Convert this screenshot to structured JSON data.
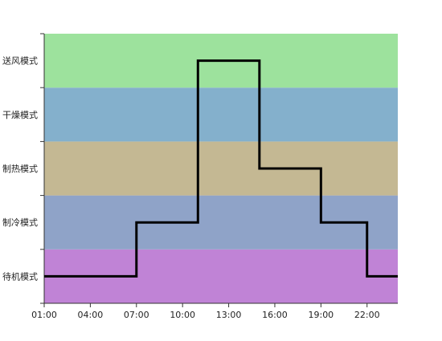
{
  "chart_data": {
    "type": "line",
    "step": true,
    "title": "",
    "xlabel": "",
    "ylabel": "",
    "x_ticks": [
      "01:00",
      "04:00",
      "07:00",
      "10:00",
      "13:00",
      "16:00",
      "19:00",
      "22:00"
    ],
    "xlim_hours": [
      1,
      24
    ],
    "bands": [
      {
        "label": "待机模式",
        "color": "#c083d6"
      },
      {
        "label": "制冷模式",
        "color": "#8fa3c8"
      },
      {
        "label": "制热模式",
        "color": "#c4b893"
      },
      {
        "label": "干燥模式",
        "color": "#84b0cc"
      },
      {
        "label": "送风模式",
        "color": "#9de29d"
      }
    ],
    "series": [
      {
        "points": [
          {
            "hour": 1,
            "mode": "待机模式"
          },
          {
            "hour": 7,
            "mode": "制冷模式"
          },
          {
            "hour": 11,
            "mode": "送风模式"
          },
          {
            "hour": 15,
            "mode": "制热模式"
          },
          {
            "hour": 19,
            "mode": "制冷模式"
          },
          {
            "hour": 22,
            "mode": "待机模式"
          },
          {
            "hour": 24,
            "mode": "待机模式"
          }
        ],
        "color": "#000000"
      }
    ]
  }
}
